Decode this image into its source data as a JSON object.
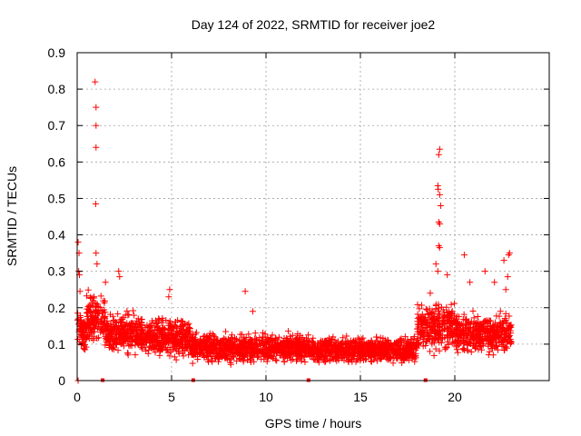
{
  "chart_data": {
    "type": "scatter",
    "title": "Day 124 of 2022, SRMTID for receiver joe2",
    "xlabel": "GPS time / hours",
    "ylabel": "SRMTID / TECUs",
    "xlim": [
      0,
      25
    ],
    "ylim": [
      0,
      0.9
    ],
    "xticks": [
      0,
      5,
      10,
      15,
      20
    ],
    "yticks": [
      0,
      0.1,
      0.2,
      0.3,
      0.4,
      0.5,
      0.6,
      0.7,
      0.8,
      0.9
    ],
    "grid": true,
    "marker": "+",
    "series": [
      {
        "name": "SRMTID",
        "color": "#ff0000",
        "notable_points": [
          {
            "x": 0.05,
            "y": 0.38
          },
          {
            "x": 0.1,
            "y": 0.35
          },
          {
            "x": 0.08,
            "y": 0.3
          },
          {
            "x": 0.12,
            "y": 0.29
          },
          {
            "x": 0.15,
            "y": 0.245
          },
          {
            "x": 0.95,
            "y": 0.82
          },
          {
            "x": 1.0,
            "y": 0.75
          },
          {
            "x": 1.0,
            "y": 0.7
          },
          {
            "x": 1.0,
            "y": 0.64
          },
          {
            "x": 0.98,
            "y": 0.485
          },
          {
            "x": 1.0,
            "y": 0.35
          },
          {
            "x": 1.05,
            "y": 0.32
          },
          {
            "x": 1.5,
            "y": 0.27
          },
          {
            "x": 2.2,
            "y": 0.3
          },
          {
            "x": 2.25,
            "y": 0.285
          },
          {
            "x": 4.9,
            "y": 0.25
          },
          {
            "x": 4.85,
            "y": 0.23
          },
          {
            "x": 8.9,
            "y": 0.245
          },
          {
            "x": 9.3,
            "y": 0.19
          },
          {
            "x": 18.7,
            "y": 0.24
          },
          {
            "x": 19.0,
            "y": 0.32
          },
          {
            "x": 19.2,
            "y": 0.635
          },
          {
            "x": 19.15,
            "y": 0.62
          },
          {
            "x": 19.1,
            "y": 0.535
          },
          {
            "x": 19.12,
            "y": 0.525
          },
          {
            "x": 19.2,
            "y": 0.51
          },
          {
            "x": 19.25,
            "y": 0.48
          },
          {
            "x": 19.15,
            "y": 0.435
          },
          {
            "x": 19.2,
            "y": 0.43
          },
          {
            "x": 19.15,
            "y": 0.37
          },
          {
            "x": 19.2,
            "y": 0.365
          },
          {
            "x": 19.1,
            "y": 0.3
          },
          {
            "x": 19.6,
            "y": 0.29
          },
          {
            "x": 20.5,
            "y": 0.345
          },
          {
            "x": 20.8,
            "y": 0.27
          },
          {
            "x": 21.6,
            "y": 0.3
          },
          {
            "x": 22.1,
            "y": 0.27
          },
          {
            "x": 22.6,
            "y": 0.33
          },
          {
            "x": 22.9,
            "y": 0.35
          },
          {
            "x": 22.85,
            "y": 0.345
          },
          {
            "x": 22.8,
            "y": 0.285
          },
          {
            "x": 22.7,
            "y": 0.25
          },
          {
            "x": 0.05,
            "y": 0.0
          }
        ],
        "envelope": [
          {
            "x_range": [
              0.0,
              0.5
            ],
            "y_range": [
              0.06,
              0.2
            ]
          },
          {
            "x_range": [
              0.5,
              1.5
            ],
            "y_range": [
              0.08,
              0.25
            ]
          },
          {
            "x_range": [
              1.5,
              3.5
            ],
            "y_range": [
              0.06,
              0.2
            ]
          },
          {
            "x_range": [
              3.5,
              6.0
            ],
            "y_range": [
              0.05,
              0.19
            ]
          },
          {
            "x_range": [
              6.0,
              12.0
            ],
            "y_range": [
              0.04,
              0.14
            ]
          },
          {
            "x_range": [
              12.0,
              18.0
            ],
            "y_range": [
              0.04,
              0.13
            ]
          },
          {
            "x_range": [
              18.0,
              20.0
            ],
            "y_range": [
              0.06,
              0.23
            ]
          },
          {
            "x_range": [
              20.0,
              23.0
            ],
            "y_range": [
              0.06,
              0.2
            ]
          }
        ],
        "gap_markers_x": [
          1.35,
          6.15,
          12.25,
          18.45
        ]
      }
    ]
  }
}
